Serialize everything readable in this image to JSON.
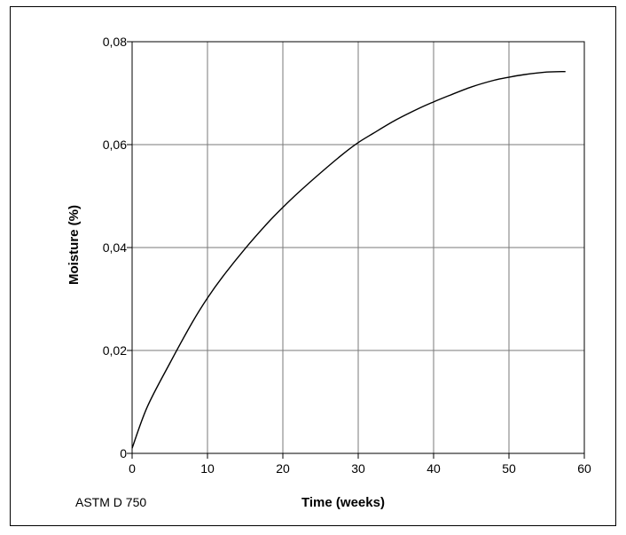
{
  "chart_data": {
    "type": "line",
    "xlabel": "Time (weeks)",
    "ylabel": "Moisture (%)",
    "xlim": [
      0,
      60
    ],
    "ylim": [
      0,
      0.08
    ],
    "x_ticks": [
      "0",
      "10",
      "20",
      "30",
      "40",
      "50",
      "60"
    ],
    "y_ticks": [
      "0",
      "0,02",
      "0,04",
      "0,06",
      "0,08"
    ],
    "grid": true,
    "note": "ASTM D 750",
    "series": [
      {
        "x": [
          0,
          2,
          5,
          8,
          10,
          12,
          15,
          18,
          20,
          22,
          25,
          28,
          30,
          32,
          35,
          38,
          40,
          42,
          45,
          48,
          50,
          52,
          55,
          57.5
        ],
        "y": [
          0.001,
          0.009,
          0.0175,
          0.0255,
          0.0302,
          0.0343,
          0.0398,
          0.0448,
          0.0478,
          0.0506,
          0.0545,
          0.0582,
          0.0604,
          0.0622,
          0.0648,
          0.067,
          0.0683,
          0.0695,
          0.0712,
          0.0725,
          0.0731,
          0.0736,
          0.0741,
          0.0742
        ]
      }
    ],
    "colors": {
      "line": "#000000",
      "grid": "#7a7a7a",
      "axis": "#000000"
    }
  }
}
